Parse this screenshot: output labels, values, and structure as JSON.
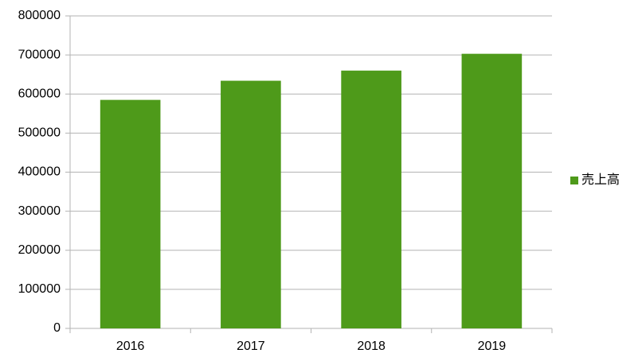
{
  "chart_data": {
    "type": "bar",
    "categories": [
      "2016",
      "2017",
      "2018",
      "2019"
    ],
    "series": [
      {
        "name": "売上高",
        "color": "#4e9a1a",
        "values": [
          585000,
          634000,
          660000,
          703000
        ]
      }
    ],
    "ylim": [
      0,
      800000
    ],
    "yticks": [
      0,
      100000,
      200000,
      300000,
      400000,
      500000,
      600000,
      700000,
      800000
    ],
    "grid": true,
    "legend": "right"
  }
}
